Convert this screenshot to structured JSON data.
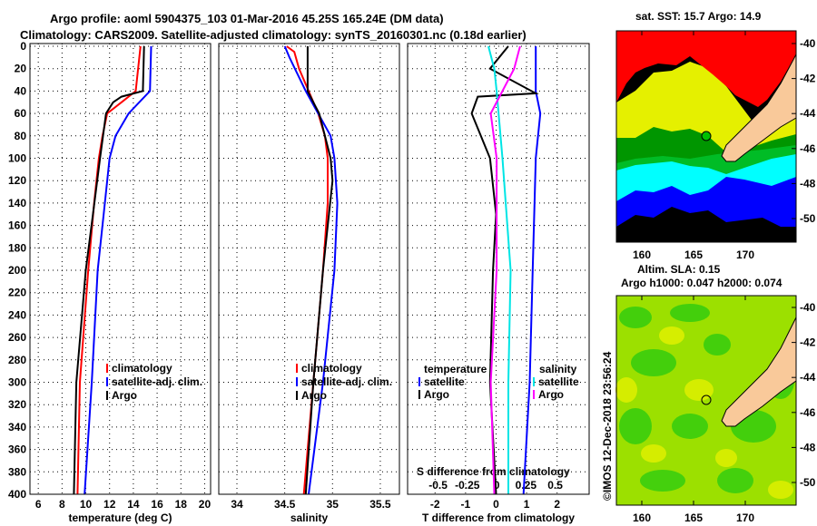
{
  "title_line1": "Argo profile: aoml 5904375_103 01-Mar-2016 45.25S 165.24E (DM data)",
  "title_line2": "Climatology: CARS2009. Satellite-adjusted climatology: synTS_20160301.nc (0.18d earlier)",
  "credit": "©IMOS 12-Dec-2018 23:56:24",
  "chart_data": [
    {
      "type": "line",
      "id": "temperature",
      "xlabel": "temperature (deg C)",
      "ylabel": "",
      "xlim": [
        5.3,
        20.5
      ],
      "ylim": [
        400,
        0
      ],
      "xticks": [
        6,
        8,
        10,
        12,
        14,
        16,
        18,
        20
      ],
      "yticks": [
        0,
        20,
        40,
        60,
        80,
        100,
        120,
        140,
        160,
        180,
        200,
        220,
        240,
        260,
        280,
        300,
        320,
        340,
        360,
        380,
        400
      ],
      "grid": true,
      "legend": [
        "climatology",
        "satellite-adj. clim.",
        "Argo"
      ],
      "series": [
        {
          "name": "climatology",
          "color": "#ff0000",
          "depth": [
            0,
            40,
            50,
            60,
            80,
            100,
            140,
            200,
            300,
            400
          ],
          "values": [
            14.6,
            14.2,
            13.0,
            11.8,
            11.4,
            11.1,
            10.7,
            10.2,
            9.5,
            9.3
          ]
        },
        {
          "name": "satellite-adj. clim.",
          "color": "#0000ff",
          "depth": [
            0,
            40,
            60,
            80,
            100,
            150,
            200,
            300,
            400
          ],
          "values": [
            15.5,
            15.4,
            13.6,
            12.5,
            12.0,
            11.5,
            11.0,
            10.5,
            9.9
          ]
        },
        {
          "name": "Argo",
          "color": "#000000",
          "depth": [
            0,
            40,
            45,
            50,
            60,
            100,
            150,
            200,
            300,
            400
          ],
          "values": [
            14.9,
            14.8,
            13.0,
            12.3,
            11.7,
            11.2,
            10.6,
            10.0,
            9.2,
            9.0
          ]
        }
      ]
    },
    {
      "type": "line",
      "id": "salinity",
      "xlabel": "salinity",
      "xlim": [
        33.81,
        35.7
      ],
      "ylim": [
        400,
        0
      ],
      "xticks": [
        34,
        34.5,
        35,
        35.5
      ],
      "grid": true,
      "legend": [
        "climatology",
        "satellite-adj. clim.",
        "Argo"
      ],
      "series": [
        {
          "name": "climatology",
          "color": "#ff0000",
          "depth": [
            0,
            5,
            20,
            40,
            60,
            80,
            100,
            140,
            200,
            300,
            400
          ],
          "values": [
            34.52,
            34.6,
            34.65,
            34.75,
            34.85,
            34.92,
            34.95,
            34.95,
            34.9,
            34.8,
            34.7
          ]
        },
        {
          "name": "satellite-adj. clim.",
          "color": "#0000ff",
          "depth": [
            0,
            10,
            40,
            60,
            80,
            100,
            140,
            200,
            300,
            400
          ],
          "values": [
            34.5,
            34.55,
            34.72,
            34.85,
            34.98,
            35.02,
            35.05,
            35.02,
            34.9,
            34.75
          ]
        },
        {
          "name": "Argo",
          "color": "#000000",
          "depth": [
            0,
            40,
            50,
            60,
            80,
            100,
            120,
            200,
            300,
            400
          ],
          "values": [
            34.74,
            34.74,
            34.8,
            34.86,
            34.92,
            34.98,
            35.0,
            34.9,
            34.8,
            34.72
          ]
        }
      ]
    },
    {
      "type": "line",
      "id": "difference",
      "xlabel": "T difference from climatology",
      "xlabel2": "S difference from climatology",
      "xlim": [
        -2.9,
        3.05
      ],
      "x2lim": [
        -0.76,
        0.79
      ],
      "ylim": [
        400,
        0
      ],
      "xticks": [
        -2,
        -1,
        0,
        1,
        2
      ],
      "x2ticks": [
        -0.5,
        -0.25,
        0,
        0.25,
        0.5
      ],
      "grid": true,
      "legend_temperature_title": "temperature",
      "legend_salinity_title": "salinity",
      "legend_temperature": [
        "satellite",
        "Argo"
      ],
      "legend_salinity": [
        "satellite",
        "Argo"
      ],
      "series": [
        {
          "name": "temperature satellite",
          "axis": "T",
          "color": "#0000ff",
          "depth": [
            0,
            40,
            60,
            100,
            200,
            300,
            400
          ],
          "values": [
            1.3,
            1.3,
            1.45,
            1.3,
            1.2,
            1.1,
            0.9
          ]
        },
        {
          "name": "temperature Argo",
          "axis": "T",
          "color": "#000000",
          "depth": [
            0,
            20,
            42,
            45,
            60,
            80,
            100,
            150,
            200,
            300,
            400
          ],
          "values": [
            0.4,
            -0.2,
            1.3,
            -0.6,
            -0.8,
            -0.5,
            -0.2,
            0.0,
            -0.1,
            -0.2,
            0.0
          ]
        },
        {
          "name": "salinity satellite",
          "axis": "S",
          "color": "#00e5e5",
          "depth": [
            0,
            20,
            40,
            100,
            200,
            300,
            400
          ],
          "values": [
            -0.07,
            -0.02,
            0.0,
            0.05,
            0.12,
            0.1,
            0.1
          ]
        },
        {
          "name": "salinity Argo",
          "axis": "S",
          "color": "#ff00ff",
          "depth": [
            0,
            20,
            40,
            60,
            100,
            200,
            300,
            400
          ],
          "values": [
            0.2,
            0.15,
            0.05,
            -0.05,
            0.0,
            0.0,
            -0.05,
            -0.02
          ]
        }
      ]
    }
  ],
  "map_sst": {
    "title": "sat. SST: 15.7 Argo: 14.9",
    "lon_ticks": [
      "160",
      "165",
      "170"
    ],
    "lat_ticks": [
      "-40",
      "-42",
      "-44",
      "-46",
      "-48",
      "-50"
    ]
  },
  "map_sla": {
    "title1": "Altim. SLA: 0.15",
    "title2": "Argo h1000: 0.047 h2000: 0.074",
    "lon_ticks": [
      "160",
      "165",
      "170"
    ],
    "lat_ticks": [
      "-40",
      "-42",
      "-44",
      "-46",
      "-48",
      "-50"
    ]
  }
}
